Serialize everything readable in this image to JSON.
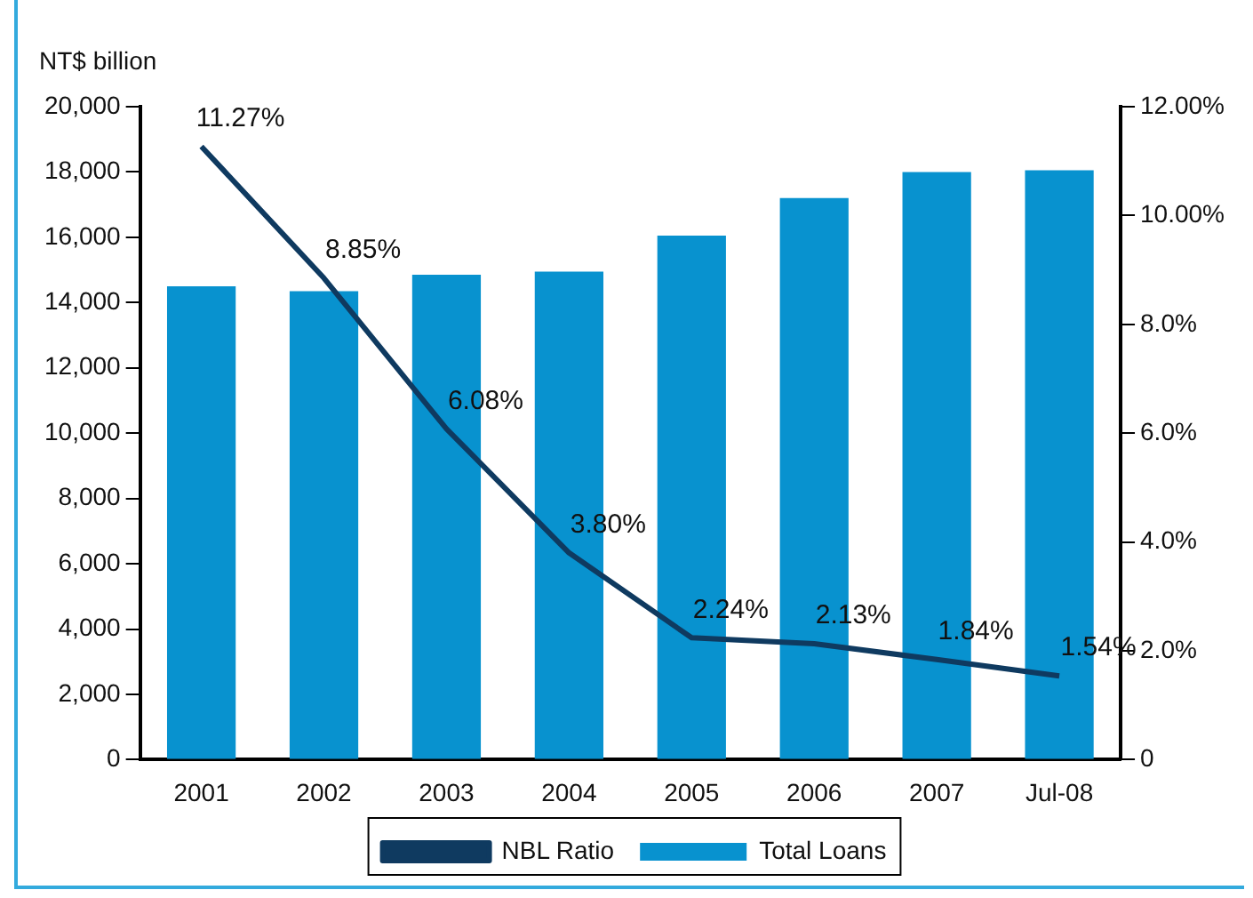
{
  "chart_data": {
    "type": "bar",
    "ylabel": "NT$ billion",
    "categories": [
      "2001",
      "2002",
      "2003",
      "2004",
      "2005",
      "2006",
      "2007",
      "Jul-08"
    ],
    "series": [
      {
        "name": "Total Loans",
        "color": "#0892cf",
        "values": [
          14500,
          14350,
          14850,
          14950,
          16050,
          17200,
          18000,
          18050
        ]
      },
      {
        "name": "NBL Ratio",
        "type": "line",
        "axis": "y2",
        "color": "#0f3a60",
        "marker": "none",
        "values": [
          11.27,
          8.85,
          6.08,
          3.8,
          2.24,
          2.13,
          1.84,
          1.54
        ],
        "value_labels": [
          "11.27%",
          "8.85%",
          "6.08%",
          "3.80%",
          "2.24%",
          "2.13%",
          "1.84%",
          "1.54%"
        ]
      }
    ],
    "ylim": [
      0,
      20000
    ],
    "yticks": [
      {
        "value": 0,
        "label": "0"
      },
      {
        "value": 2000,
        "label": "2,000"
      },
      {
        "value": 4000,
        "label": "4,000"
      },
      {
        "value": 6000,
        "label": "6,000"
      },
      {
        "value": 8000,
        "label": "8,000"
      },
      {
        "value": 10000,
        "label": "10,000"
      },
      {
        "value": 12000,
        "label": "12,000"
      },
      {
        "value": 14000,
        "label": "14,000"
      },
      {
        "value": 16000,
        "label": "16,000"
      },
      {
        "value": 18000,
        "label": "18,000"
      },
      {
        "value": 20000,
        "label": "20,000"
      }
    ],
    "y2lim": [
      0,
      12
    ],
    "y2ticks": [
      {
        "value": 0,
        "label": "0"
      },
      {
        "value": 2,
        "label": "2.0%"
      },
      {
        "value": 4,
        "label": "4.0%"
      },
      {
        "value": 6,
        "label": "6.0%"
      },
      {
        "value": 8,
        "label": "8.0%"
      },
      {
        "value": 10,
        "label": "10.00%"
      },
      {
        "value": 12,
        "label": "12.00%"
      }
    ],
    "grid": false,
    "legend": "bottom"
  }
}
